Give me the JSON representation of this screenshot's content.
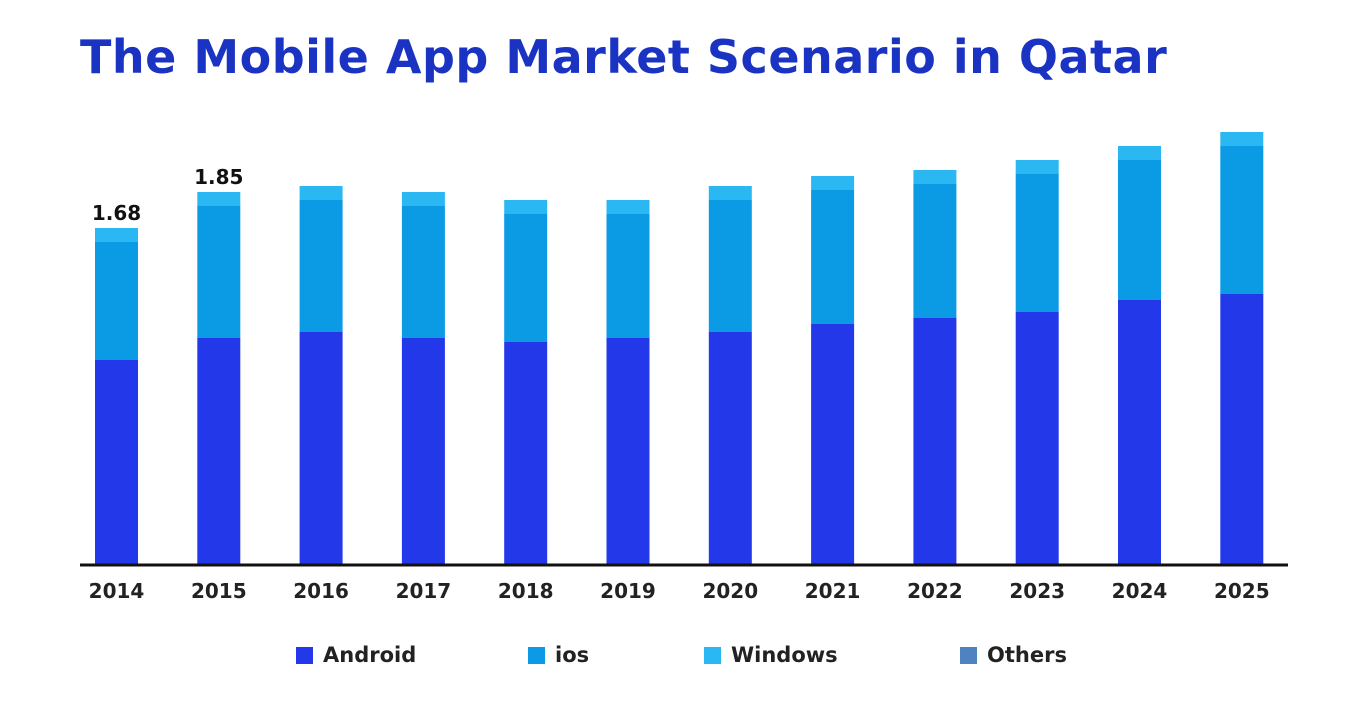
{
  "colors": {
    "title": "#1a33c2",
    "android": "#2338e8",
    "ios": "#0a9be4",
    "windows": "#2bb8f2",
    "others": "#4e82c0",
    "axis": "#111111",
    "label": "#222222"
  },
  "chart_data": {
    "type": "bar",
    "stacked": true,
    "title": "The Mobile App Market Scenario in Qatar",
    "xlabel": "",
    "ylabel": "",
    "ylim": [
      0,
      2.1
    ],
    "grid": false,
    "legend_position": "bottom",
    "categories": [
      "2014",
      "2015",
      "2016",
      "2017",
      "2018",
      "2019",
      "2020",
      "2021",
      "2022",
      "2023",
      "2024",
      "2025"
    ],
    "series": [
      {
        "name": "Android",
        "color": "#2338e8",
        "values": [
          1.02,
          1.13,
          1.16,
          1.13,
          1.11,
          1.13,
          1.16,
          1.2,
          1.23,
          1.26,
          1.32,
          1.35
        ]
      },
      {
        "name": "ios",
        "color": "#0a9be4",
        "values": [
          0.59,
          0.66,
          0.66,
          0.66,
          0.64,
          0.62,
          0.66,
          0.67,
          0.67,
          0.69,
          0.7,
          0.74
        ]
      },
      {
        "name": "Windows",
        "color": "#2bb8f2",
        "values": [
          0.07,
          0.07,
          0.07,
          0.07,
          0.07,
          0.07,
          0.07,
          0.07,
          0.07,
          0.07,
          0.07,
          0.07
        ]
      },
      {
        "name": "Others",
        "color": "#4e82c0",
        "values": [
          0,
          0,
          0,
          0,
          0,
          0,
          0,
          0,
          0,
          0,
          0,
          0
        ]
      }
    ],
    "annotations": [
      {
        "category": "2014",
        "text": "1.68"
      },
      {
        "category": "2015",
        "text": "1.85"
      }
    ]
  }
}
